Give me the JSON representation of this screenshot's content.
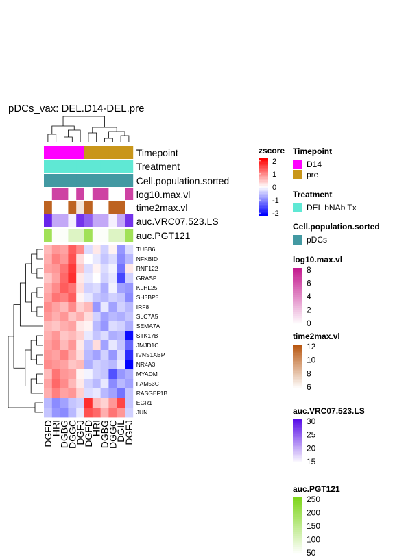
{
  "chart_data": {
    "type": "heatmap",
    "title": "pDCs_vax: DEL.D14-DEL.pre",
    "columns": [
      "DGFD",
      "HRI",
      "DGBG",
      "DGGC",
      "DGFJ",
      "DGFD",
      "HRI",
      "DGBG",
      "DGGC",
      "DGIL",
      "DGFJ"
    ],
    "rows": [
      "TUBB6",
      "NFKBID",
      "RNF122",
      "GRASP",
      "KLHL25",
      "SH3BP5",
      "IRF8",
      "SLC7A5",
      "SEMA7A",
      "STK17B",
      "JMJD1C",
      "IVNS1ABP",
      "NR4A3",
      "MYADM",
      "FAM53C",
      "RASGEF1B",
      "EGR1",
      "JUN"
    ],
    "values": [
      [
        0.6,
        0.9,
        0.8,
        1.4,
        1.0,
        -0.3,
        0.2,
        -0.4,
        0.1,
        -0.9,
        -0.3
      ],
      [
        0.7,
        1.1,
        0.9,
        1.5,
        0.3,
        0.0,
        -0.2,
        -0.5,
        -0.3,
        -1.0,
        -0.6
      ],
      [
        0.8,
        0.9,
        1.2,
        1.7,
        0.5,
        -0.3,
        0.1,
        -0.3,
        -0.1,
        -1.2,
        0.2
      ],
      [
        0.5,
        0.8,
        1.3,
        1.8,
        0.2,
        -0.2,
        0.0,
        -0.4,
        -0.2,
        -1.6,
        -0.4
      ],
      [
        0.7,
        1.0,
        1.4,
        1.2,
        0.3,
        -0.4,
        -0.3,
        -0.7,
        -0.1,
        -0.8,
        -0.9
      ],
      [
        0.8,
        1.2,
        1.1,
        1.4,
        0.1,
        -0.2,
        -0.5,
        -0.6,
        -0.4,
        -0.5,
        -1.0
      ],
      [
        1.0,
        0.8,
        0.6,
        1.0,
        0.4,
        0.6,
        -0.9,
        -0.2,
        -0.8,
        -0.4,
        -0.6
      ],
      [
        0.9,
        0.7,
        0.9,
        0.5,
        0.7,
        0.3,
        -0.4,
        -0.8,
        -0.6,
        -0.7,
        -0.5
      ],
      [
        0.6,
        0.5,
        0.7,
        0.8,
        0.2,
        0.1,
        -0.6,
        -0.9,
        -0.3,
        -0.4,
        -0.7
      ],
      [
        0.7,
        0.9,
        0.5,
        0.6,
        0.4,
        -0.2,
        -0.5,
        -0.3,
        -0.7,
        -0.6,
        -2.1
      ],
      [
        0.8,
        1.0,
        0.6,
        0.9,
        0.2,
        -0.5,
        0.3,
        -0.8,
        -0.2,
        -0.5,
        -1.3
      ],
      [
        0.9,
        0.8,
        1.1,
        0.7,
        0.3,
        -0.6,
        -0.8,
        -0.4,
        -0.9,
        -0.3,
        -1.8
      ],
      [
        1.0,
        0.9,
        0.8,
        0.5,
        0.6,
        -0.7,
        -0.4,
        -0.5,
        -0.6,
        -0.2,
        -2.2
      ],
      [
        0.6,
        1.2,
        0.9,
        0.8,
        0.1,
        -0.1,
        -0.4,
        -0.5,
        -1.5,
        -0.9,
        -0.7
      ],
      [
        0.8,
        1.3,
        1.0,
        0.6,
        0.2,
        -0.4,
        -0.6,
        -0.2,
        -1.0,
        -0.6,
        -0.8
      ],
      [
        0.7,
        1.1,
        0.8,
        0.9,
        0.4,
        -0.3,
        -0.2,
        -0.6,
        -0.8,
        -1.2,
        -0.5
      ],
      [
        -0.6,
        -1.0,
        -0.8,
        -0.5,
        -0.4,
        1.8,
        0.6,
        0.4,
        0.9,
        1.6,
        -0.5
      ],
      [
        -0.5,
        -0.9,
        -1.0,
        -0.6,
        -0.2,
        1.5,
        1.3,
        0.7,
        1.2,
        0.9,
        -0.4
      ]
    ],
    "annotations": {
      "Timepoint": [
        "D14",
        "D14",
        "D14",
        "D14",
        "D14",
        "pre",
        "pre",
        "pre",
        "pre",
        "pre",
        "pre"
      ],
      "Treatment": [
        "DEL bNAb Tx",
        "DEL bNAb Tx",
        "DEL bNAb Tx",
        "DEL bNAb Tx",
        "DEL bNAb Tx",
        "DEL bNAb Tx",
        "DEL bNAb Tx",
        "DEL bNAb Tx",
        "DEL bNAb Tx",
        "DEL bNAb Tx",
        "DEL bNAb Tx"
      ],
      "Cell.population.sorted": [
        "pDCs",
        "pDCs",
        "pDCs",
        "pDCs",
        "pDCs",
        "pDCs",
        "pDCs",
        "pDCs",
        "pDCs",
        "pDCs",
        "pDCs"
      ],
      "log10.max.vl": [
        0,
        7,
        7,
        0,
        7,
        0,
        7,
        7,
        0,
        0,
        7
      ],
      "time2max.vl": [
        12,
        6,
        6,
        12,
        7,
        12,
        6,
        6,
        12,
        12,
        6
      ],
      "auc.VRC07.523.LS": [
        29,
        20,
        20,
        15,
        28,
        25,
        20,
        20,
        15,
        20,
        28
      ],
      "auc.PGT121": [
        200,
        50,
        50,
        100,
        100,
        200,
        50,
        50,
        100,
        100,
        200
      ]
    },
    "annotation_order": [
      "Timepoint",
      "Treatment",
      "Cell.population.sorted",
      "log10.max.vl",
      "time2max.vl",
      "auc.VRC07.523.LS",
      "auc.PGT121"
    ],
    "zscore_legend": {
      "title": "zscore",
      "ticks": [
        2,
        1,
        0,
        -1,
        -2
      ],
      "range": [
        -2.2,
        2.2
      ]
    },
    "legends": [
      {
        "title": "Timepoint",
        "kind": "discrete",
        "items": [
          {
            "label": "D14",
            "color": "#ff00ff"
          },
          {
            "label": "pre",
            "color": "#c9961a"
          }
        ]
      },
      {
        "title": "Treatment",
        "kind": "discrete",
        "items": [
          {
            "label": "DEL bNAb Tx",
            "color": "#5fe8d4"
          }
        ]
      },
      {
        "title": "Cell.population.sorted",
        "kind": "discrete",
        "items": [
          {
            "label": "pDCs",
            "color": "#4399a2"
          }
        ]
      },
      {
        "title": "log10.max.vl",
        "kind": "continuous",
        "ticks": [
          8,
          6,
          4,
          2,
          0
        ],
        "range": [
          0,
          8.5
        ],
        "low": "#ffffff",
        "high": "#c41a8f"
      },
      {
        "title": "time2max.vl",
        "kind": "continuous",
        "ticks": [
          12,
          10,
          8,
          6
        ],
        "range": [
          6,
          12.5
        ],
        "low": "#ffffff",
        "high": "#b8560f"
      },
      {
        "title": "auc.VRC07.523.LS",
        "kind": "continuous",
        "ticks": [
          30,
          25,
          20,
          15
        ],
        "range": [
          14,
          30.5
        ],
        "low": "#ffffff",
        "high": "#5a0fe8"
      },
      {
        "title": "auc.PGT121",
        "kind": "continuous",
        "ticks": [
          250,
          200,
          150,
          100,
          50
        ],
        "range": [
          45,
          255
        ],
        "low": "#ffffff",
        "high": "#7fd61c"
      }
    ],
    "colors": {
      "heat_low": "#0000ff",
      "heat_mid": "#ffffff",
      "heat_high": "#ff0000",
      "timepoint_D14": "#ff00ff",
      "timepoint_pre": "#c9961a",
      "treatment": "#5fe8d4",
      "population": "#4399a2"
    }
  }
}
